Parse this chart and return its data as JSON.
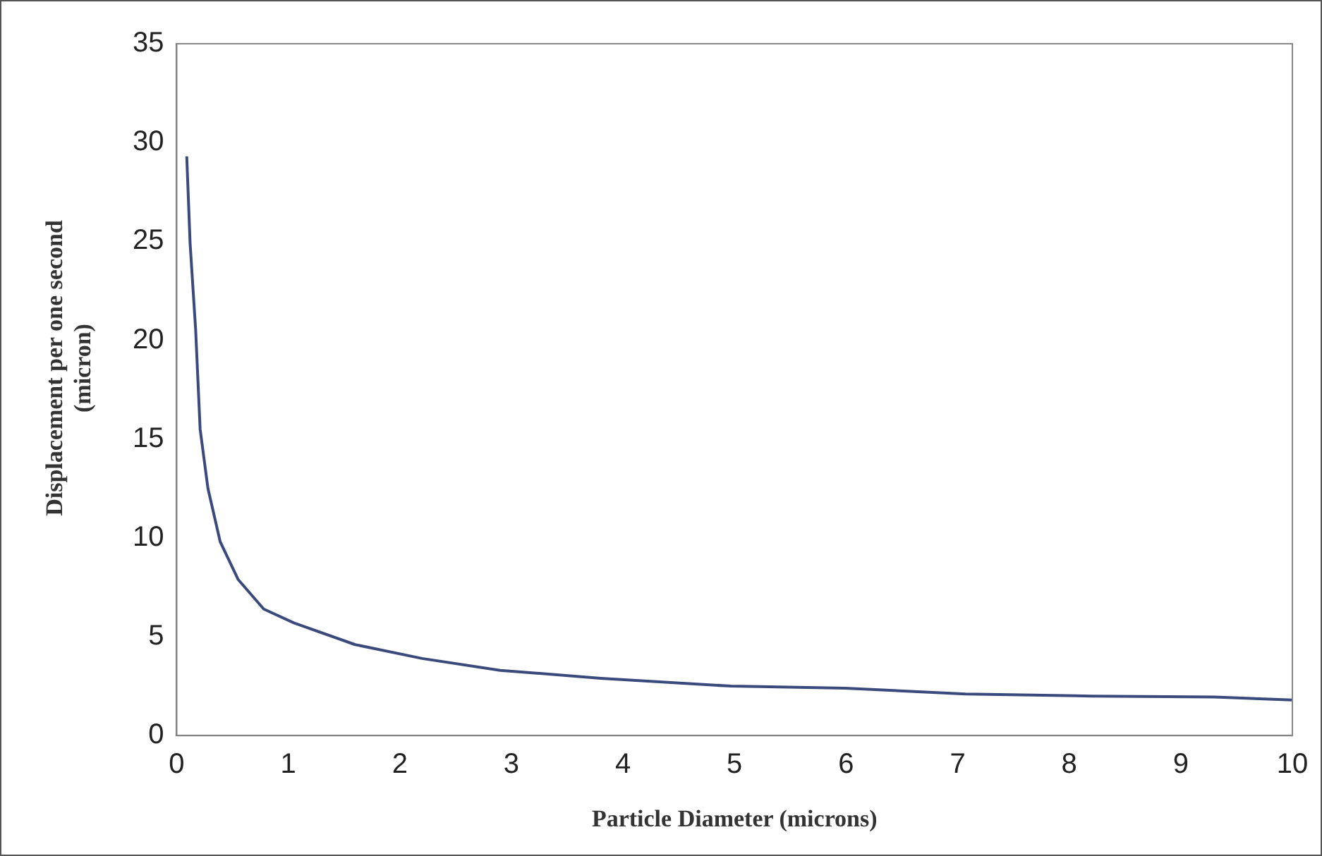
{
  "chart_data": {
    "type": "line",
    "xlabel": "Particle Diameter (microns)",
    "ylabel": "Displacement per one second (micron)",
    "x": [
      0.09,
      0.12,
      0.17,
      0.21,
      0.28,
      0.39,
      0.55,
      0.78,
      1.05,
      1.6,
      2.2,
      2.9,
      3.8,
      4.97,
      5.99,
      7.07,
      8.2,
      9.3,
      10
    ],
    "series": [
      {
        "color": "#3b4a7c",
        "values": [
          29.3,
          24.9,
          20.5,
          15.5,
          12.5,
          9.8,
          7.9,
          6.4,
          5.7,
          4.6,
          3.9,
          3.3,
          2.9,
          2.5,
          2.4,
          2.1,
          2.0,
          1.95,
          1.8
        ]
      }
    ],
    "xlim": [
      0,
      10
    ],
    "xticks": [
      0,
      1,
      2,
      3,
      4,
      5,
      6,
      7,
      8,
      9,
      10
    ],
    "ylim": [
      0,
      35
    ],
    "yticks": [
      0,
      5,
      10,
      15,
      20,
      25,
      30,
      35
    ],
    "grid": false,
    "legend": false,
    "marker": "none",
    "line_style": "solid"
  }
}
